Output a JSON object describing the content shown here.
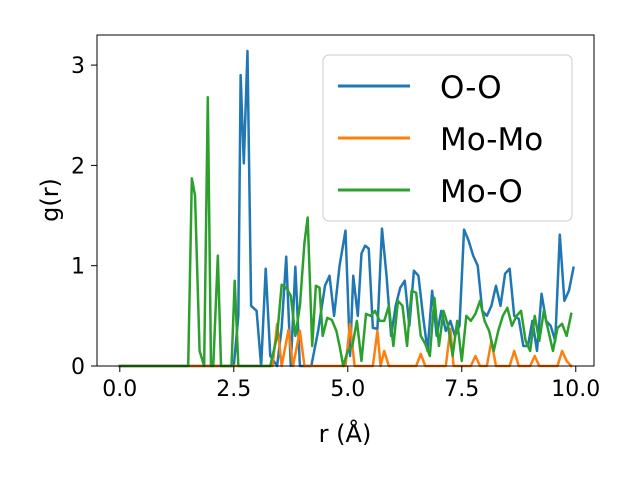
{
  "chart_data": {
    "type": "line",
    "title": "",
    "xlabel": "r (Å)",
    "ylabel": "g(r)",
    "xlim": [
      -0.5,
      10.4
    ],
    "ylim": [
      0,
      3.3
    ],
    "xticks": [
      0.0,
      2.5,
      5.0,
      7.5,
      10.0
    ],
    "xtick_labels": [
      "0.0",
      "2.5",
      "5.0",
      "7.5",
      "10.0"
    ],
    "yticks": [
      0,
      1,
      2,
      3
    ],
    "ytick_labels": [
      "0",
      "1",
      "2",
      "3"
    ],
    "grid": false,
    "legend_position": "top-right",
    "series": [
      {
        "name": "O-O",
        "color": "#1f77b4",
        "points": [
          [
            0.0,
            0
          ],
          [
            2.5,
            0
          ],
          [
            2.6,
            0.5
          ],
          [
            2.65,
            2.9
          ],
          [
            2.72,
            2.02
          ],
          [
            2.8,
            3.14
          ],
          [
            2.88,
            0.6
          ],
          [
            3.0,
            0.55
          ],
          [
            3.1,
            0.0
          ],
          [
            3.2,
            0.97
          ],
          [
            3.3,
            0.1
          ],
          [
            3.45,
            0.0
          ],
          [
            3.55,
            0.38
          ],
          [
            3.65,
            1.09
          ],
          [
            3.75,
            0.0
          ],
          [
            3.85,
            0.99
          ],
          [
            3.95,
            0.0
          ],
          [
            4.2,
            0.0
          ],
          [
            4.35,
            0.35
          ],
          [
            4.5,
            0.8
          ],
          [
            4.6,
            0.9
          ],
          [
            4.7,
            0.5
          ],
          [
            4.82,
            1.0
          ],
          [
            4.95,
            1.35
          ],
          [
            5.05,
            0.1
          ],
          [
            5.12,
            0.9
          ],
          [
            5.22,
            0.5
          ],
          [
            5.3,
            1.12
          ],
          [
            5.38,
            1.2
          ],
          [
            5.46,
            1.17
          ],
          [
            5.55,
            0.38
          ],
          [
            5.65,
            0.37
          ],
          [
            5.75,
            1.37
          ],
          [
            5.85,
            0.9
          ],
          [
            5.95,
            0.3
          ],
          [
            6.05,
            0.6
          ],
          [
            6.15,
            0.78
          ],
          [
            6.25,
            0.85
          ],
          [
            6.35,
            0.4
          ],
          [
            6.45,
            0.95
          ],
          [
            6.55,
            0.9
          ],
          [
            6.65,
            0.5
          ],
          [
            6.75,
            0.15
          ],
          [
            6.85,
            0.75
          ],
          [
            6.95,
            0.3
          ],
          [
            7.05,
            0.55
          ],
          [
            7.15,
            0.35
          ],
          [
            7.25,
            0.45
          ],
          [
            7.35,
            0.3
          ],
          [
            7.45,
            0.4
          ],
          [
            7.55,
            1.36
          ],
          [
            7.65,
            1.25
          ],
          [
            7.75,
            1.1
          ],
          [
            7.85,
            1.0
          ],
          [
            7.95,
            0.55
          ],
          [
            8.05,
            0.5
          ],
          [
            8.15,
            0.6
          ],
          [
            8.25,
            0.8
          ],
          [
            8.35,
            0.6
          ],
          [
            8.45,
            0.92
          ],
          [
            8.55,
            0.97
          ],
          [
            8.65,
            0.5
          ],
          [
            8.75,
            0.47
          ],
          [
            8.85,
            0.2
          ],
          [
            8.95,
            0.2
          ],
          [
            9.05,
            0.45
          ],
          [
            9.15,
            0.15
          ],
          [
            9.25,
            0.72
          ],
          [
            9.35,
            0.45
          ],
          [
            9.45,
            0.4
          ],
          [
            9.55,
            0.25
          ],
          [
            9.65,
            1.31
          ],
          [
            9.75,
            0.65
          ],
          [
            9.85,
            0.75
          ],
          [
            9.95,
            0.98
          ]
        ]
      },
      {
        "name": "Mo-Mo",
        "color": "#ff7f0e",
        "points": [
          [
            0.0,
            0
          ],
          [
            3.35,
            0
          ],
          [
            3.45,
            0.42
          ],
          [
            3.55,
            0.0
          ],
          [
            3.7,
            0.36
          ],
          [
            3.8,
            0.0
          ],
          [
            3.95,
            0.35
          ],
          [
            4.05,
            0.0
          ],
          [
            4.95,
            0.0
          ],
          [
            5.05,
            0.42
          ],
          [
            5.15,
            0.0
          ],
          [
            5.55,
            0.0
          ],
          [
            5.65,
            0.35
          ],
          [
            5.72,
            0.0
          ],
          [
            5.8,
            0.15
          ],
          [
            5.9,
            0.0
          ],
          [
            6.5,
            0.0
          ],
          [
            6.6,
            0.12
          ],
          [
            6.7,
            0.0
          ],
          [
            7.15,
            0.0
          ],
          [
            7.25,
            0.37
          ],
          [
            7.32,
            0.0
          ],
          [
            7.7,
            0.0
          ],
          [
            7.8,
            0.1
          ],
          [
            7.9,
            0.0
          ],
          [
            8.05,
            0.0
          ],
          [
            8.15,
            0.25
          ],
          [
            8.25,
            0.0
          ],
          [
            8.55,
            0.0
          ],
          [
            8.65,
            0.15
          ],
          [
            8.75,
            0.0
          ],
          [
            9.0,
            0.0
          ],
          [
            9.1,
            0.1
          ],
          [
            9.2,
            0.0
          ],
          [
            9.6,
            0.0
          ],
          [
            9.7,
            0.15
          ],
          [
            9.8,
            0.05
          ],
          [
            9.9,
            0.0
          ]
        ]
      },
      {
        "name": "Mo-O",
        "color": "#2ca02c",
        "points": [
          [
            0.0,
            0
          ],
          [
            1.5,
            0
          ],
          [
            1.58,
            1.87
          ],
          [
            1.65,
            1.7
          ],
          [
            1.75,
            0.15
          ],
          [
            1.85,
            0.0
          ],
          [
            1.93,
            2.68
          ],
          [
            2.0,
            0.0
          ],
          [
            2.05,
            0.0
          ],
          [
            2.15,
            1.1
          ],
          [
            2.22,
            0.0
          ],
          [
            2.45,
            0.0
          ],
          [
            2.52,
            0.85
          ],
          [
            2.6,
            0.0
          ],
          [
            3.0,
            0.0
          ],
          [
            3.15,
            0.0
          ],
          [
            3.3,
            0.0
          ],
          [
            3.45,
            0.3
          ],
          [
            3.55,
            0.81
          ],
          [
            3.65,
            0.78
          ],
          [
            3.75,
            0.7
          ],
          [
            3.85,
            0.3
          ],
          [
            3.95,
            0.6
          ],
          [
            4.05,
            1.23
          ],
          [
            4.12,
            1.48
          ],
          [
            4.22,
            0.2
          ],
          [
            4.3,
            0.8
          ],
          [
            4.38,
            0.78
          ],
          [
            4.45,
            0.3
          ],
          [
            4.55,
            0.48
          ],
          [
            4.65,
            0.46
          ],
          [
            4.75,
            0.35
          ],
          [
            4.82,
            0.2
          ],
          [
            4.9,
            0.0
          ],
          [
            5.0,
            0.15
          ],
          [
            5.1,
            0.2
          ],
          [
            5.2,
            0.45
          ],
          [
            5.3,
            0.05
          ],
          [
            5.4,
            0.52
          ],
          [
            5.5,
            0.5
          ],
          [
            5.6,
            0.55
          ],
          [
            5.7,
            0.45
          ],
          [
            5.8,
            0.45
          ],
          [
            5.9,
            0.6
          ],
          [
            6.0,
            0.2
          ],
          [
            6.1,
            0.65
          ],
          [
            6.2,
            0.6
          ],
          [
            6.3,
            0.2
          ],
          [
            6.4,
            0.75
          ],
          [
            6.5,
            0.73
          ],
          [
            6.6,
            0.3
          ],
          [
            6.7,
            0.22
          ],
          [
            6.8,
            0.1
          ],
          [
            6.9,
            0.68
          ],
          [
            7.0,
            0.2
          ],
          [
            7.1,
            0.55
          ],
          [
            7.2,
            0.4
          ],
          [
            7.3,
            0.1
          ],
          [
            7.4,
            0.45
          ],
          [
            7.5,
            0.05
          ],
          [
            7.6,
            0.5
          ],
          [
            7.7,
            0.45
          ],
          [
            7.8,
            0.52
          ],
          [
            7.9,
            0.65
          ],
          [
            8.0,
            0.45
          ],
          [
            8.1,
            0.35
          ],
          [
            8.2,
            0.15
          ],
          [
            8.3,
            0.35
          ],
          [
            8.4,
            0.5
          ],
          [
            8.5,
            0.58
          ],
          [
            8.6,
            0.4
          ],
          [
            8.7,
            0.5
          ],
          [
            8.8,
            0.55
          ],
          [
            8.9,
            0.25
          ],
          [
            9.0,
            0.15
          ],
          [
            9.1,
            0.5
          ],
          [
            9.2,
            0.25
          ],
          [
            9.3,
            0.55
          ],
          [
            9.4,
            0.35
          ],
          [
            9.5,
            0.15
          ],
          [
            9.6,
            0.38
          ],
          [
            9.7,
            0.42
          ],
          [
            9.8,
            0.3
          ],
          [
            9.9,
            0.52
          ]
        ]
      }
    ]
  }
}
